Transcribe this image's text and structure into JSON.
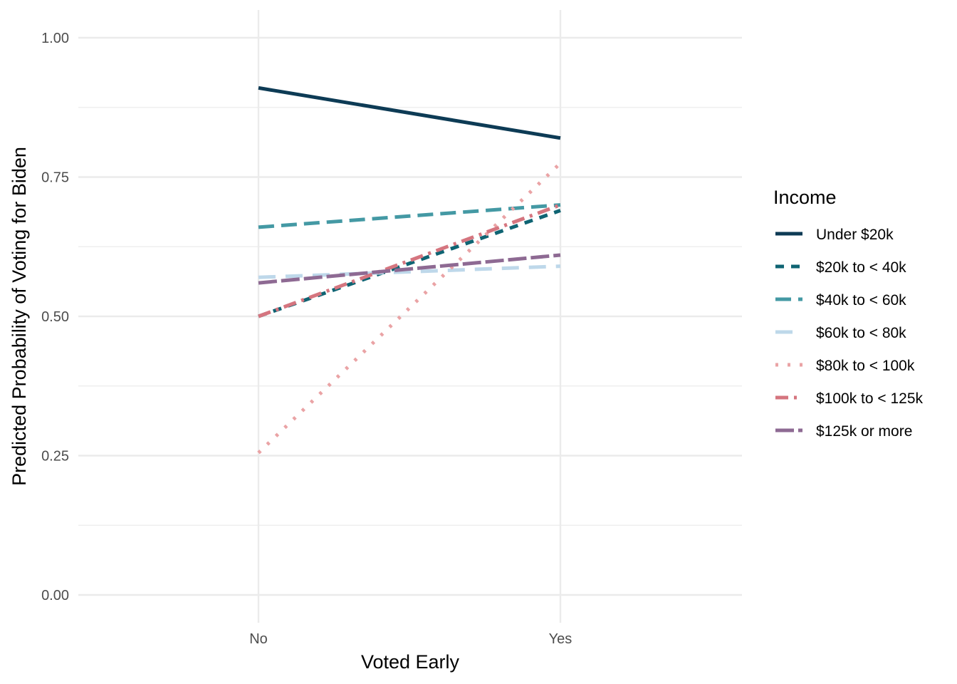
{
  "chart_data": {
    "type": "line",
    "title": "",
    "xlabel": "Voted Early",
    "ylabel": "Predicted Probability of Voting for Biden",
    "categories": [
      "No",
      "Yes"
    ],
    "ylim": [
      -0.04,
      1.05
    ],
    "yticks": [
      0,
      0.25,
      0.5,
      0.75,
      1
    ],
    "ytick_labels": [
      "0.00",
      "0.25",
      "0.50",
      "0.75",
      "1.00"
    ],
    "grid": true,
    "legend_title": "Income",
    "legend_position": "right",
    "series": [
      {
        "name": "Under $20k",
        "values": [
          0.91,
          0.82
        ],
        "color": "#0d3b55",
        "dash": "solid"
      },
      {
        "name": "$20k to < 40k",
        "values": [
          0.5,
          0.69
        ],
        "color": "#0f6473",
        "dash": "dashed"
      },
      {
        "name": "$40k to < 60k",
        "values": [
          0.66,
          0.7
        ],
        "color": "#4499a4",
        "dash": "longdash"
      },
      {
        "name": "$60k to < 80k",
        "values": [
          0.57,
          0.59
        ],
        "color": "#bed8ea",
        "dash": "longdash-gap"
      },
      {
        "name": "$80k to < 100k",
        "values": [
          0.255,
          0.775
        ],
        "color": "#eaa3a5",
        "dash": "dotted"
      },
      {
        "name": "$100k to < 125k",
        "values": [
          0.5,
          0.7
        ],
        "color": "#d5757f",
        "dash": "dotdash"
      },
      {
        "name": "$125k or more",
        "values": [
          0.56,
          0.61
        ],
        "color": "#8e6a93",
        "dash": "twodash"
      }
    ]
  }
}
